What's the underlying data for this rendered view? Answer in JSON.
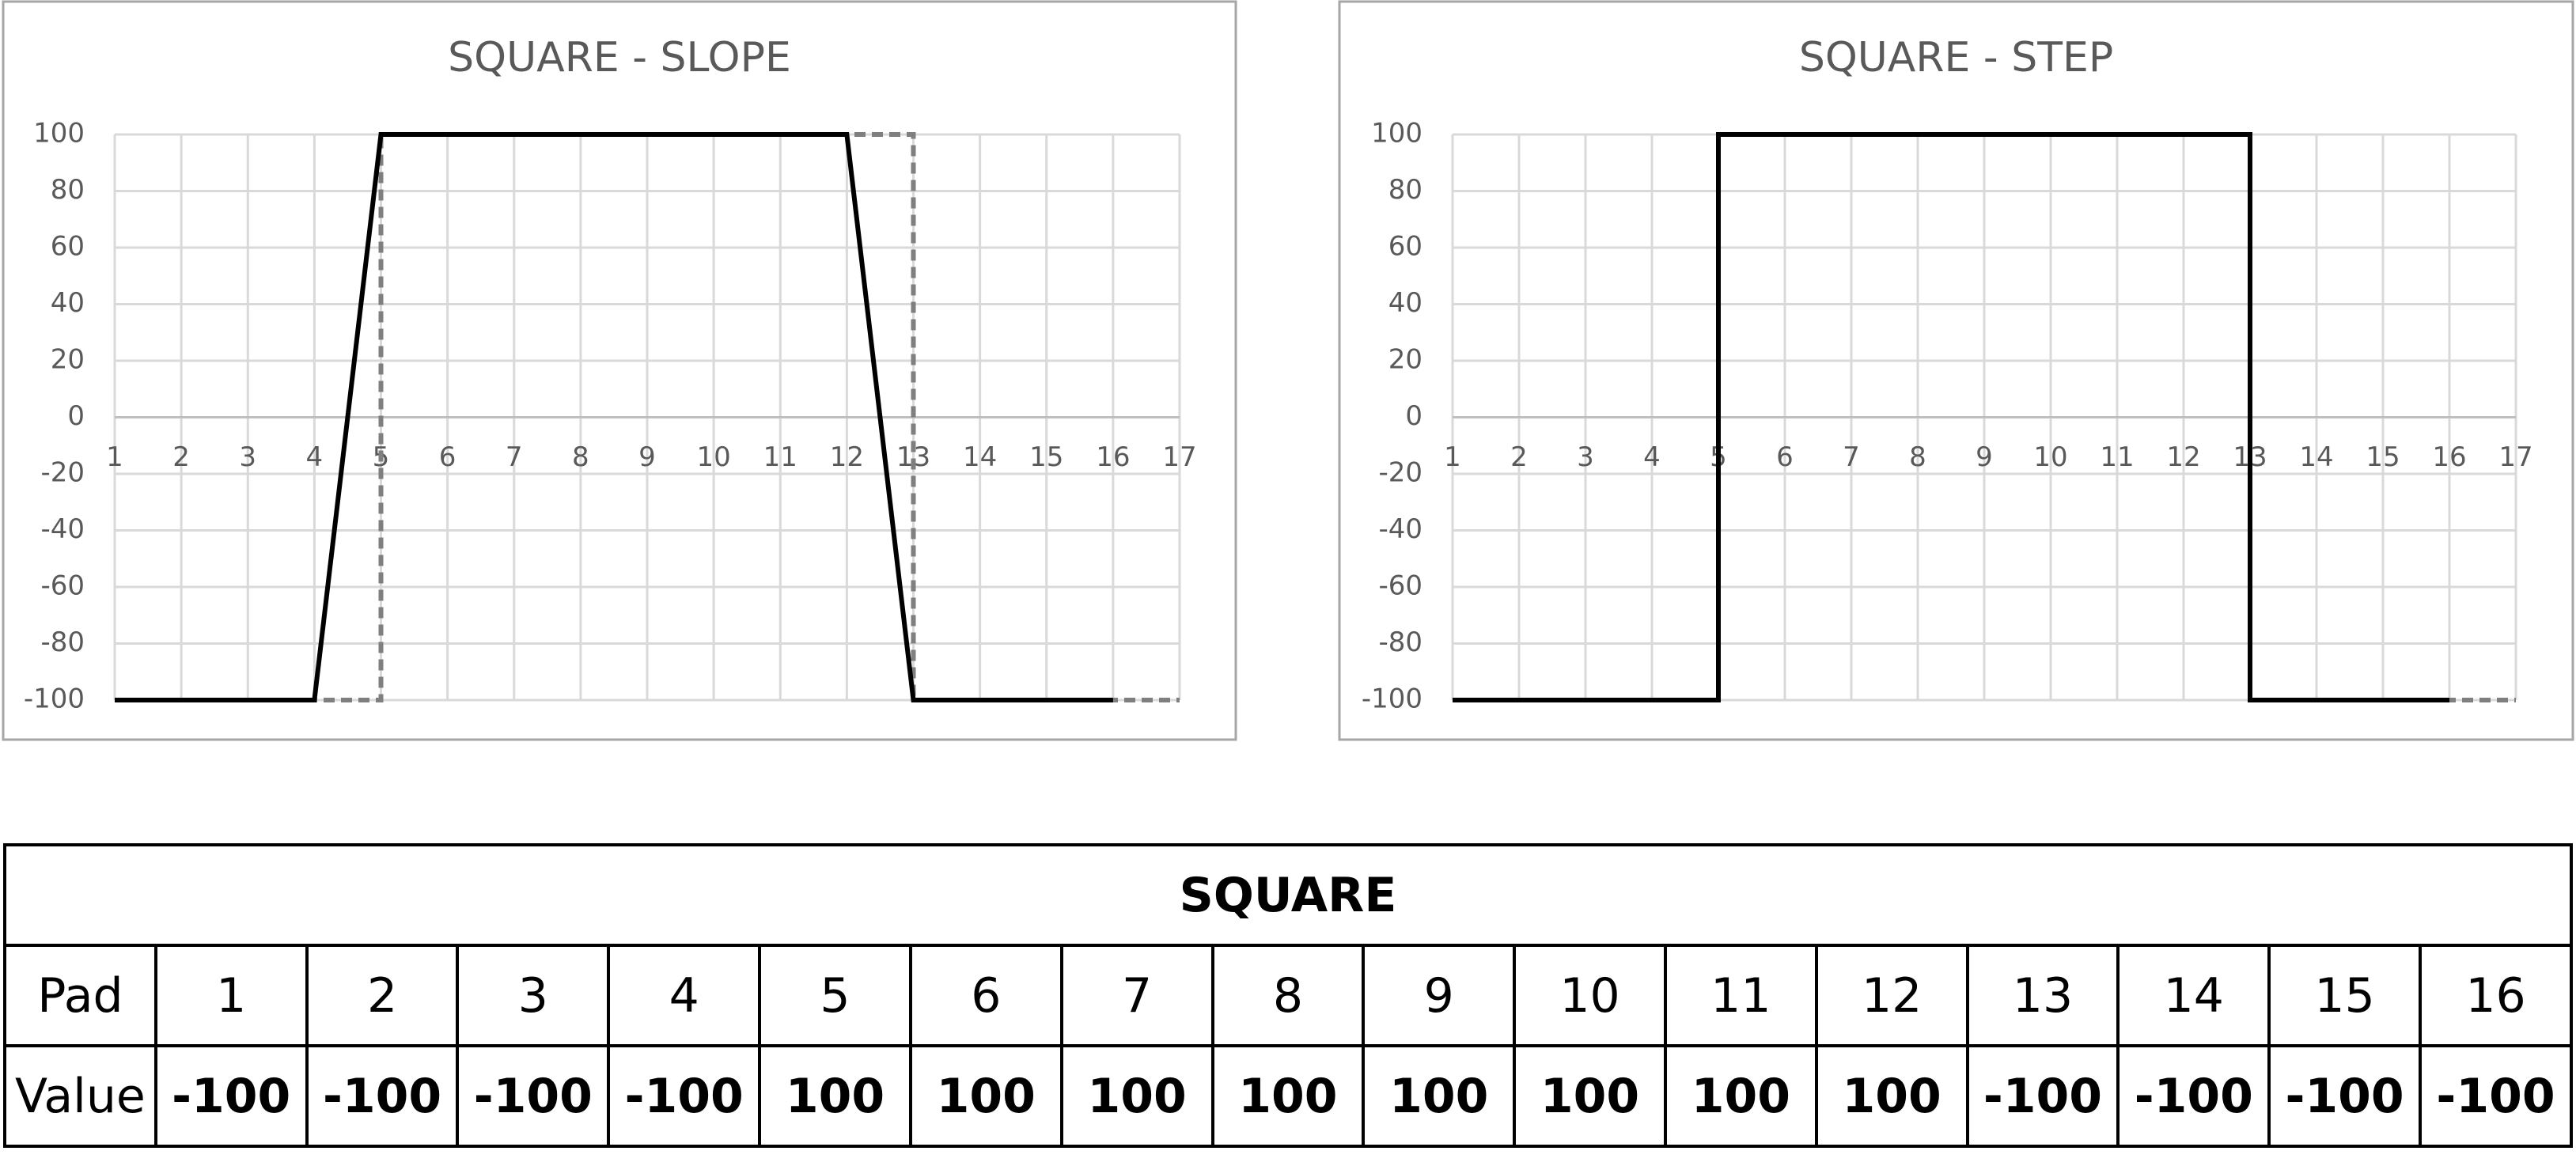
{
  "chart_data": [
    {
      "type": "line",
      "title": "SQUARE - SLOPE",
      "xlim": [
        1,
        17
      ],
      "ylim": [
        -100,
        100
      ],
      "xticks": [
        1,
        2,
        3,
        4,
        5,
        6,
        7,
        8,
        9,
        10,
        11,
        12,
        13,
        14,
        15,
        16,
        17
      ],
      "yticks": [
        -100,
        -80,
        -60,
        -40,
        -20,
        0,
        20,
        40,
        60,
        80,
        100
      ],
      "grid": true,
      "series": [
        {
          "color": "#7f7f7f",
          "dashed": true,
          "x": [
            1,
            5,
            5,
            13,
            13,
            17
          ],
          "values": [
            -100,
            -100,
            100,
            100,
            -100,
            -100
          ]
        },
        {
          "color": "#000000",
          "dashed": false,
          "x": [
            1,
            4,
            5,
            12,
            13,
            16
          ],
          "values": [
            -100,
            -100,
            100,
            100,
            -100,
            -100
          ]
        }
      ]
    },
    {
      "type": "line",
      "title": "SQUARE - STEP",
      "xlim": [
        1,
        17
      ],
      "ylim": [
        -100,
        100
      ],
      "xticks": [
        1,
        2,
        3,
        4,
        5,
        6,
        7,
        8,
        9,
        10,
        11,
        12,
        13,
        14,
        15,
        16,
        17
      ],
      "yticks": [
        -100,
        -80,
        -60,
        -40,
        -20,
        0,
        20,
        40,
        60,
        80,
        100
      ],
      "grid": true,
      "series": [
        {
          "color": "#7f7f7f",
          "dashed": true,
          "x": [
            1,
            5,
            5,
            13,
            13,
            17
          ],
          "values": [
            -100,
            -100,
            100,
            100,
            -100,
            -100
          ]
        },
        {
          "color": "#000000",
          "dashed": false,
          "x": [
            1,
            5,
            5,
            13,
            13,
            16
          ],
          "values": [
            -100,
            -100,
            100,
            100,
            -100,
            -100
          ]
        }
      ]
    }
  ],
  "table": {
    "title": "SQUARE",
    "rows": [
      [
        "Pad",
        1,
        2,
        3,
        4,
        5,
        6,
        7,
        8,
        9,
        10,
        11,
        12,
        13,
        14,
        15,
        16
      ],
      [
        "Value",
        -100,
        -100,
        -100,
        -100,
        100,
        100,
        100,
        100,
        100,
        100,
        100,
        100,
        -100,
        -100,
        -100,
        -100
      ]
    ]
  }
}
